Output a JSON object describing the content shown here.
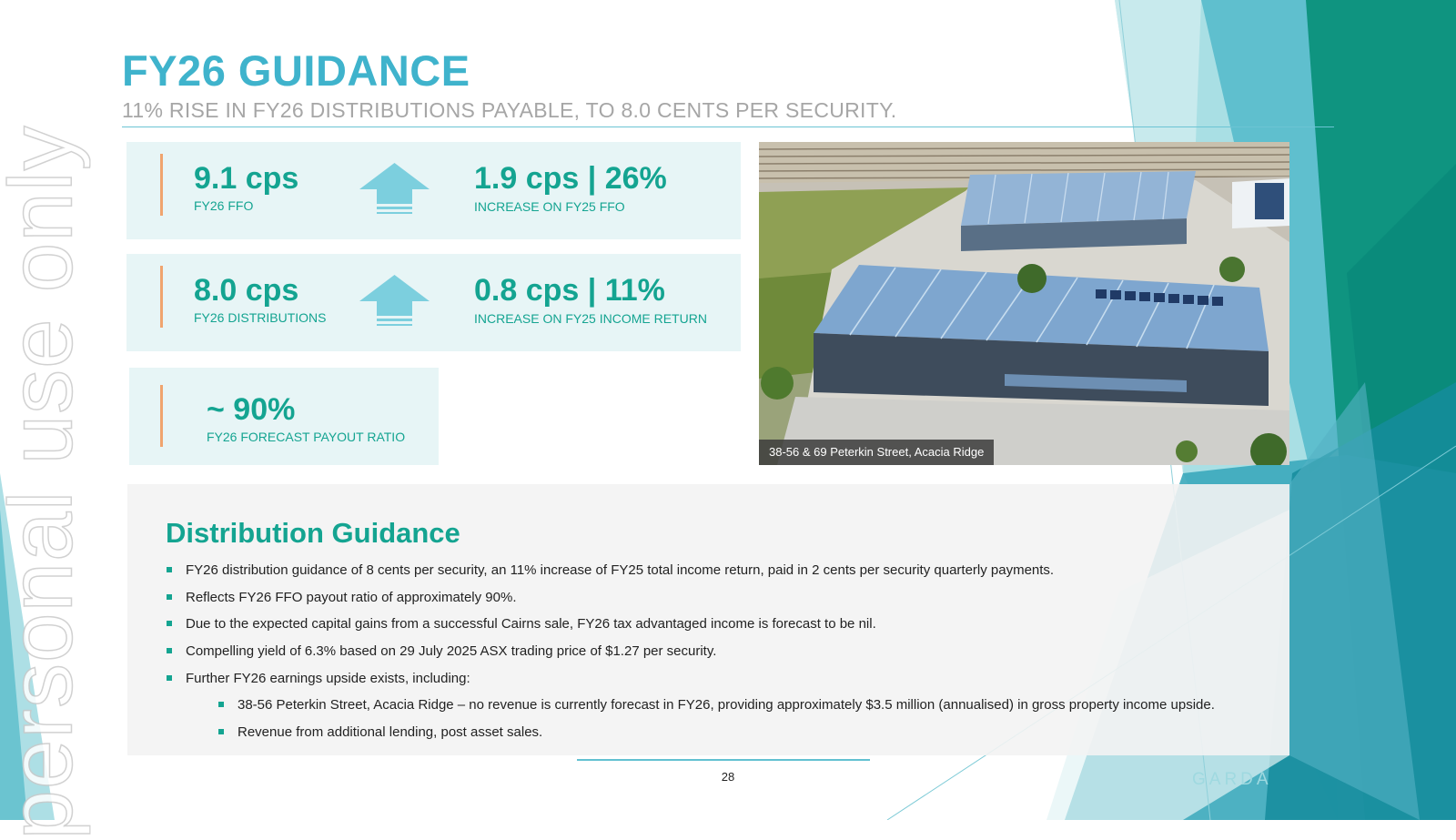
{
  "slide": {
    "title": "FY26 GUIDANCE",
    "subtitle": "11% RISE IN FY26 DISTRIBUTIONS PAYABLE, TO 8.0 CENTS PER SECURITY.",
    "watermark": "personal use only"
  },
  "stats": [
    {
      "value": "9.1 cps",
      "label": "FY26 FFO",
      "change_value": "1.9 cps | 26%",
      "change_label": "INCREASE ON FY25 FFO",
      "icon": "up-arrow-icon"
    },
    {
      "value": "8.0 cps",
      "label": "FY26 DISTRIBUTIONS",
      "change_value": "0.8 cps | 11%",
      "change_label": "INCREASE ON FY25 INCOME RETURN",
      "icon": "up-arrow-icon"
    },
    {
      "value": "~ 90%",
      "label": "FY26 FORECAST PAYOUT RATIO"
    }
  ],
  "photo": {
    "caption": "38-56 & 69 Peterkin Street, Acacia Ridge",
    "subject": "aerial-warehouse-photo"
  },
  "guidance": {
    "title": "Distribution Guidance",
    "bullets": [
      "FY26 distribution guidance of 8 cents per security, an 11% increase of FY25 total income return, paid in 2 cents per security quarterly payments.",
      "Reflects FY26 FFO payout ratio of approximately 90%.",
      "Due to the expected capital gains from a successful Cairns sale, FY26 tax advantaged income is forecast to be nil.",
      "Compelling yield of 6.3% based on 29 July 2025 ASX trading price of $1.27 per security.",
      "Further FY26 earnings upside exists, including:"
    ],
    "sub_bullets": [
      "38-56 Peterkin Street, Acacia Ridge – no revenue is currently forecast in FY26, providing approximately $3.5 million (annualised) in gross property income upside.",
      "Revenue from additional lending, post asset sales."
    ]
  },
  "footer": {
    "page_number": "28",
    "brand": "GARDA"
  },
  "colors": {
    "title": "#3fb3cc",
    "accent_teal": "#14a491",
    "stat_bg": "#e7f5f6",
    "stat_bar": "#f0a46e",
    "arrow": "#7ccfde",
    "dark_teal": "#0e8a7c"
  }
}
